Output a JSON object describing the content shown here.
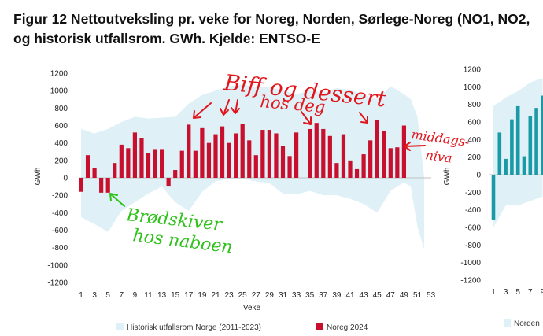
{
  "title_lines": [
    "Figur 12 Nettoutveksling pr. veke for Noreg, Norden, Sørlege-Noreg (NO1, NO2,",
    "og historisk utfallsrom.  GWh. Kjelde: ENTSO-E"
  ],
  "colors": {
    "bar": "#c8102e",
    "band": "#dff1f7",
    "teal": "#1a9aa6",
    "annot_red": "#e0161c",
    "annot_green": "#2ec21a"
  },
  "chart_data": [
    {
      "type": "bar",
      "name": "Noreg",
      "xlabel": "Veke",
      "ylabel": "GWh",
      "ylim": [
        -1200,
        1200
      ],
      "yticks": [
        -1200,
        -1000,
        -800,
        -600,
        -400,
        -200,
        0,
        200,
        400,
        600,
        800,
        1000,
        1200
      ],
      "xticks": [
        1,
        3,
        5,
        7,
        9,
        11,
        13,
        15,
        17,
        19,
        21,
        23,
        25,
        27,
        29,
        31,
        33,
        35,
        37,
        39,
        41,
        43,
        45,
        47,
        49,
        51,
        53
      ],
      "xlim": [
        1,
        53
      ],
      "series": [
        {
          "name": "Noreg 2024",
          "type": "bar",
          "weeks": [
            1,
            2,
            3,
            4,
            5,
            6,
            7,
            8,
            9,
            10,
            11,
            12,
            13,
            14,
            15,
            16,
            17,
            18,
            19,
            20,
            21,
            22,
            23,
            24,
            25,
            26,
            27,
            28,
            29,
            30,
            31,
            32,
            33,
            34,
            35,
            36,
            37,
            38,
            39,
            40,
            41,
            42,
            43,
            44,
            45,
            46,
            47,
            48,
            49
          ],
          "values": [
            -160,
            260,
            110,
            -170,
            -170,
            170,
            380,
            340,
            520,
            460,
            280,
            330,
            330,
            -100,
            90,
            310,
            610,
            310,
            570,
            400,
            500,
            590,
            400,
            510,
            620,
            430,
            260,
            550,
            550,
            510,
            370,
            250,
            520,
            0,
            560,
            630,
            560,
            480,
            170,
            500,
            200,
            100,
            270,
            430,
            660,
            540,
            340,
            350,
            600
          ]
        },
        {
          "name": "Historisk utfallsrom Norge (2011-2023)",
          "type": "band",
          "weeks": [
            1,
            3,
            5,
            7,
            9,
            11,
            13,
            15,
            17,
            19,
            21,
            23,
            25,
            27,
            29,
            31,
            33,
            35,
            37,
            39,
            41,
            43,
            45,
            47,
            49,
            50,
            51,
            52
          ],
          "lower": [
            -450,
            -530,
            -620,
            -380,
            -280,
            -180,
            -100,
            -280,
            -380,
            -160,
            -40,
            -10,
            -10,
            -40,
            -60,
            -180,
            -190,
            -150,
            -200,
            -200,
            -240,
            -300,
            -400,
            -150,
            -50,
            -100,
            -560,
            -820
          ],
          "upper": [
            560,
            510,
            560,
            640,
            700,
            680,
            690,
            700,
            850,
            950,
            1000,
            1050,
            1070,
            1040,
            1040,
            1000,
            960,
            1000,
            980,
            1030,
            1010,
            950,
            900,
            1050,
            960,
            900,
            700,
            0
          ]
        }
      ],
      "legend": [
        "Historisk utfallsrom Norge (2011-2023)",
        "Noreg 2024"
      ]
    },
    {
      "type": "bar",
      "name": "Norden",
      "ylabel": "GWh",
      "ylim": [
        -1200,
        1200
      ],
      "yticks": [
        -1200,
        -1000,
        -800,
        -600,
        -400,
        -200,
        0,
        200,
        400,
        600,
        800,
        1000,
        1200
      ],
      "xticks": [
        1,
        3,
        5,
        7,
        9
      ],
      "series": [
        {
          "name": "Norden",
          "type": "bar",
          "weeks": [
            1,
            2,
            3,
            4,
            5,
            6,
            7,
            8,
            9
          ],
          "values": [
            -510,
            480,
            180,
            630,
            780,
            210,
            670,
            760,
            900
          ]
        },
        {
          "name": "band",
          "type": "band",
          "weeks": [
            1,
            3,
            5,
            7,
            9
          ],
          "lower": [
            -600,
            -350,
            -350,
            -300,
            -250
          ],
          "upper": [
            780,
            880,
            950,
            1050,
            1100
          ]
        }
      ],
      "legend": [
        "Norden"
      ]
    }
  ],
  "annotations": {
    "red_1": "Biff og dessert",
    "red_2": "hos deg",
    "red_3": "middags-",
    "red_4": "niva",
    "green_1": "Brødskiver",
    "green_2": "hos naboen"
  }
}
